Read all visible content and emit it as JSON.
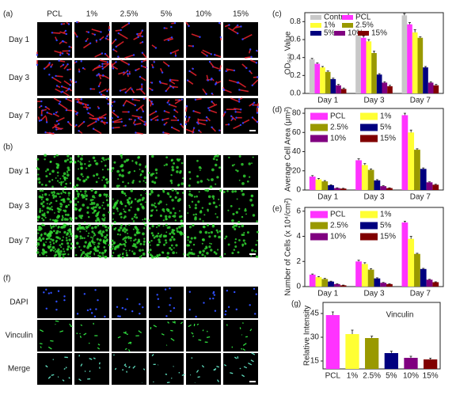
{
  "panels": [
    {
      "label": "(a)",
      "columns": [
        "PCL",
        "1%",
        "2.5%",
        "5%",
        "10%",
        "15%"
      ],
      "rows": [
        "Day 1",
        "Day 3",
        "Day 7"
      ]
    },
    {
      "label": "(b)",
      "rows": [
        "Day 1",
        "Day 3",
        "Day 7"
      ]
    },
    {
      "label": "(f)",
      "rows": [
        "DAPI",
        "Vinculin",
        "Merge"
      ],
      "row_colors": [
        "#3355cc",
        "#22aa22",
        "#222222"
      ]
    }
  ],
  "chart_data": [
    {
      "type": "bar",
      "panel_label": "(c)",
      "y_label": "OD₅₆₀ Value",
      "categories": [
        "Day 1",
        "Day 3",
        "Day 7"
      ],
      "series": [
        {
          "name": "Control",
          "color": "#c8c8c8",
          "values": [
            0.38,
            0.65,
            0.87
          ],
          "errors": [
            0.01,
            0.02,
            0.02
          ]
        },
        {
          "name": "PCL",
          "color": "#ff33ff",
          "values": [
            0.33,
            0.62,
            0.77
          ],
          "errors": [
            0.01,
            0.02,
            0.02
          ]
        },
        {
          "name": "1%",
          "color": "#ffff33",
          "values": [
            0.29,
            0.58,
            0.68
          ],
          "errors": [
            0.01,
            0.02,
            0.03
          ]
        },
        {
          "name": "2.5%",
          "color": "#999900",
          "values": [
            0.24,
            0.45,
            0.62
          ],
          "errors": [
            0.01,
            0.02,
            0.01
          ]
        },
        {
          "name": "5%",
          "color": "#00007f",
          "values": [
            0.16,
            0.21,
            0.29
          ],
          "errors": [
            0.01,
            0.01,
            0.01
          ]
        },
        {
          "name": "10%",
          "color": "#800080",
          "values": [
            0.09,
            0.12,
            0.12
          ],
          "errors": [
            0.01,
            0.01,
            0.01
          ]
        },
        {
          "name": "15%",
          "color": "#800000",
          "values": [
            0.05,
            0.08,
            0.09
          ],
          "errors": [
            0.01,
            0.01,
            0.01
          ]
        }
      ],
      "ylim": [
        0,
        0.9
      ],
      "yticks": [
        {
          "value": 0,
          "label": "0.0"
        },
        0.2,
        0.4,
        0.6,
        0.8
      ],
      "legend": "top"
    },
    {
      "type": "bar",
      "panel_label": "(d)",
      "y_label": "Average Cell Area (μm²)",
      "categories": [
        "Day 1",
        "Day 3",
        "Day 7"
      ],
      "series": [
        {
          "name": "PCL",
          "color": "#ff33ff",
          "values": [
            14,
            31,
            78
          ],
          "errors": [
            1,
            1.5,
            2
          ]
        },
        {
          "name": "1%",
          "color": "#ffff33",
          "values": [
            11,
            26,
            60
          ],
          "errors": [
            1,
            1.5,
            2.5
          ]
        },
        {
          "name": "2.5%",
          "color": "#999900",
          "values": [
            9,
            21,
            42
          ],
          "errors": [
            0.8,
            1,
            1
          ]
        },
        {
          "name": "5%",
          "color": "#00007f",
          "values": [
            5,
            10,
            22
          ],
          "errors": [
            0.5,
            0.8,
            1
          ]
        },
        {
          "name": "10%",
          "color": "#800080",
          "values": [
            2,
            4,
            8
          ],
          "errors": [
            0.3,
            0.5,
            0.5
          ]
        },
        {
          "name": "15%",
          "color": "#800000",
          "values": [
            1.5,
            2,
            5.5
          ],
          "errors": [
            0.3,
            0.3,
            0.5
          ]
        }
      ],
      "ylim": [
        0,
        85
      ],
      "yticks": [
        0,
        20,
        40,
        60,
        80
      ],
      "legend": "top-left"
    },
    {
      "type": "bar",
      "panel_label": "(e)",
      "y_label": "Number of Cells (x 10⁴/cm²)",
      "categories": [
        "Day 1",
        "Day 3",
        "Day 7"
      ],
      "series": [
        {
          "name": "PCL",
          "color": "#ff33ff",
          "values": [
            0.95,
            2.0,
            5.1
          ],
          "errors": [
            0.05,
            0.1,
            0.1
          ]
        },
        {
          "name": "1%",
          "color": "#ffff33",
          "values": [
            0.75,
            1.8,
            3.8
          ],
          "errors": [
            0.05,
            0.1,
            0.2
          ]
        },
        {
          "name": "2.5%",
          "color": "#999900",
          "values": [
            0.6,
            1.35,
            2.6
          ],
          "errors": [
            0.05,
            0.08,
            0.05
          ]
        },
        {
          "name": "5%",
          "color": "#00007f",
          "values": [
            0.4,
            0.65,
            1.4
          ],
          "errors": [
            0.03,
            0.05,
            0.05
          ]
        },
        {
          "name": "10%",
          "color": "#800080",
          "values": [
            0.2,
            0.3,
            0.55
          ],
          "errors": [
            0.02,
            0.03,
            0.03
          ]
        },
        {
          "name": "15%",
          "color": "#800000",
          "values": [
            0.1,
            0.2,
            0.35
          ],
          "errors": [
            0.02,
            0.02,
            0.03
          ]
        }
      ],
      "ylim": [
        0,
        6.3
      ],
      "yticks": [
        0,
        2,
        4,
        6
      ],
      "legend": "top-left"
    },
    {
      "type": "bar",
      "panel_label": "(g)",
      "y_label": "Relative Intensity",
      "annotation": "Vinculin",
      "categories": [
        "PCL",
        "1%",
        "2.5%",
        "5%",
        "10%",
        "15%"
      ],
      "values": [
        44,
        32,
        29.5,
        20,
        17,
        16
      ],
      "errors": [
        2,
        2.5,
        1.2,
        1.2,
        1,
        0.8
      ],
      "colors": [
        "#ff33ff",
        "#ffff33",
        "#999900",
        "#00007f",
        "#800080",
        "#800000"
      ],
      "ylim": [
        10,
        52
      ],
      "yticks": [
        15,
        30,
        45
      ]
    }
  ]
}
